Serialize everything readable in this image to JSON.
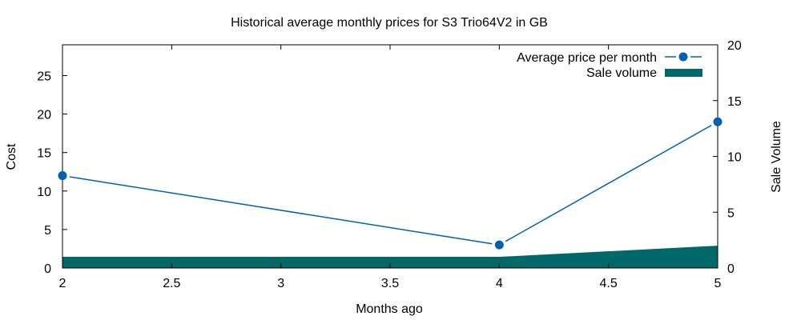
{
  "chart_data": {
    "type": "line",
    "title": "Historical average monthly prices for S3 Trio64V2 in GB",
    "xlabel": "Months ago",
    "ylabel": "Cost",
    "y2label": "Sale Volume",
    "xlim": [
      2,
      5
    ],
    "ylim": [
      0,
      29
    ],
    "y2lim": [
      0,
      20
    ],
    "x_ticks": [
      "2",
      "2.5",
      "3",
      "3.5",
      "4",
      "4.5",
      "5"
    ],
    "y_ticks": [
      "0",
      "5",
      "10",
      "15",
      "20",
      "25"
    ],
    "y2_ticks": [
      "0",
      "5",
      "10",
      "15",
      "20"
    ],
    "grid": false,
    "legend_position": "top-right",
    "series": [
      {
        "name": "Average price per month",
        "type": "line",
        "axis": "y",
        "color": "#0060ad",
        "x": [
          2,
          4,
          5
        ],
        "values": [
          12,
          3,
          19
        ]
      },
      {
        "name": "Sale volume",
        "type": "area",
        "axis": "y2",
        "color": "#006868",
        "x": [
          2,
          4,
          5
        ],
        "values": [
          1,
          1,
          2
        ]
      }
    ]
  }
}
